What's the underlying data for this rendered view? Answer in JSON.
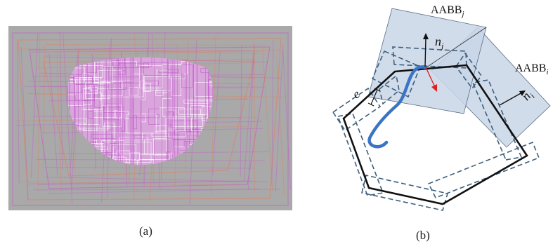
{
  "captions": {
    "a": "(a)",
    "b": "(b)"
  },
  "labels": {
    "aabb_j_main": "AABB",
    "aabb_j_sub": "j",
    "aabb_i_main": "AABB",
    "aabb_i_sub": "i",
    "n_j_main": "n",
    "n_j_sub": "j",
    "n_i_main": "n",
    "n_i_sub": "i",
    "e": "e"
  },
  "colors": {
    "background_gray": "#a8a8a8",
    "wire_purple": "#c060c8",
    "wire_orange": "#e08060",
    "box_fill": "#c9d6e8",
    "dashed_blue": "#3d5f7e",
    "curve_blue": "#3a74c4",
    "arrow_red": "#e02020",
    "polygon_black": "#111111"
  }
}
